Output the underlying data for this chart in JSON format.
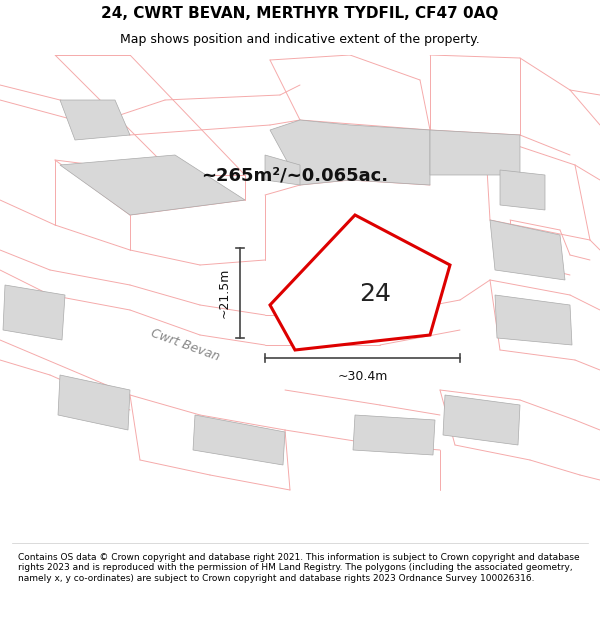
{
  "title_line1": "24, CWRT BEVAN, MERTHYR TYDFIL, CF47 0AQ",
  "title_line2": "Map shows position and indicative extent of the property.",
  "footer": "Contains OS data © Crown copyright and database right 2021. This information is subject to Crown copyright and database rights 2023 and is reproduced with the permission of HM Land Registry. The polygons (including the associated geometry, namely x, y co-ordinates) are subject to Crown copyright and database rights 2023 Ordnance Survey 100026316.",
  "area_label": "~265m²/~0.065ac.",
  "width_label": "~30.4m",
  "height_label": "~21.5m",
  "property_number": "24",
  "street_label": "Cwrt Bevan",
  "map_bg": "#f7f4f4",
  "building_fill": "#d8d8d8",
  "building_edge": "#aaaaaa",
  "road_line_color": "#f5aaaa",
  "property_color": "#dd0000",
  "dim_line_color": "#444444",
  "title_fontsize": 11,
  "subtitle_fontsize": 9,
  "area_fontsize": 13,
  "number_fontsize": 18,
  "street_fontsize": 9,
  "dim_fontsize": 9,
  "footer_fontsize": 6.5
}
